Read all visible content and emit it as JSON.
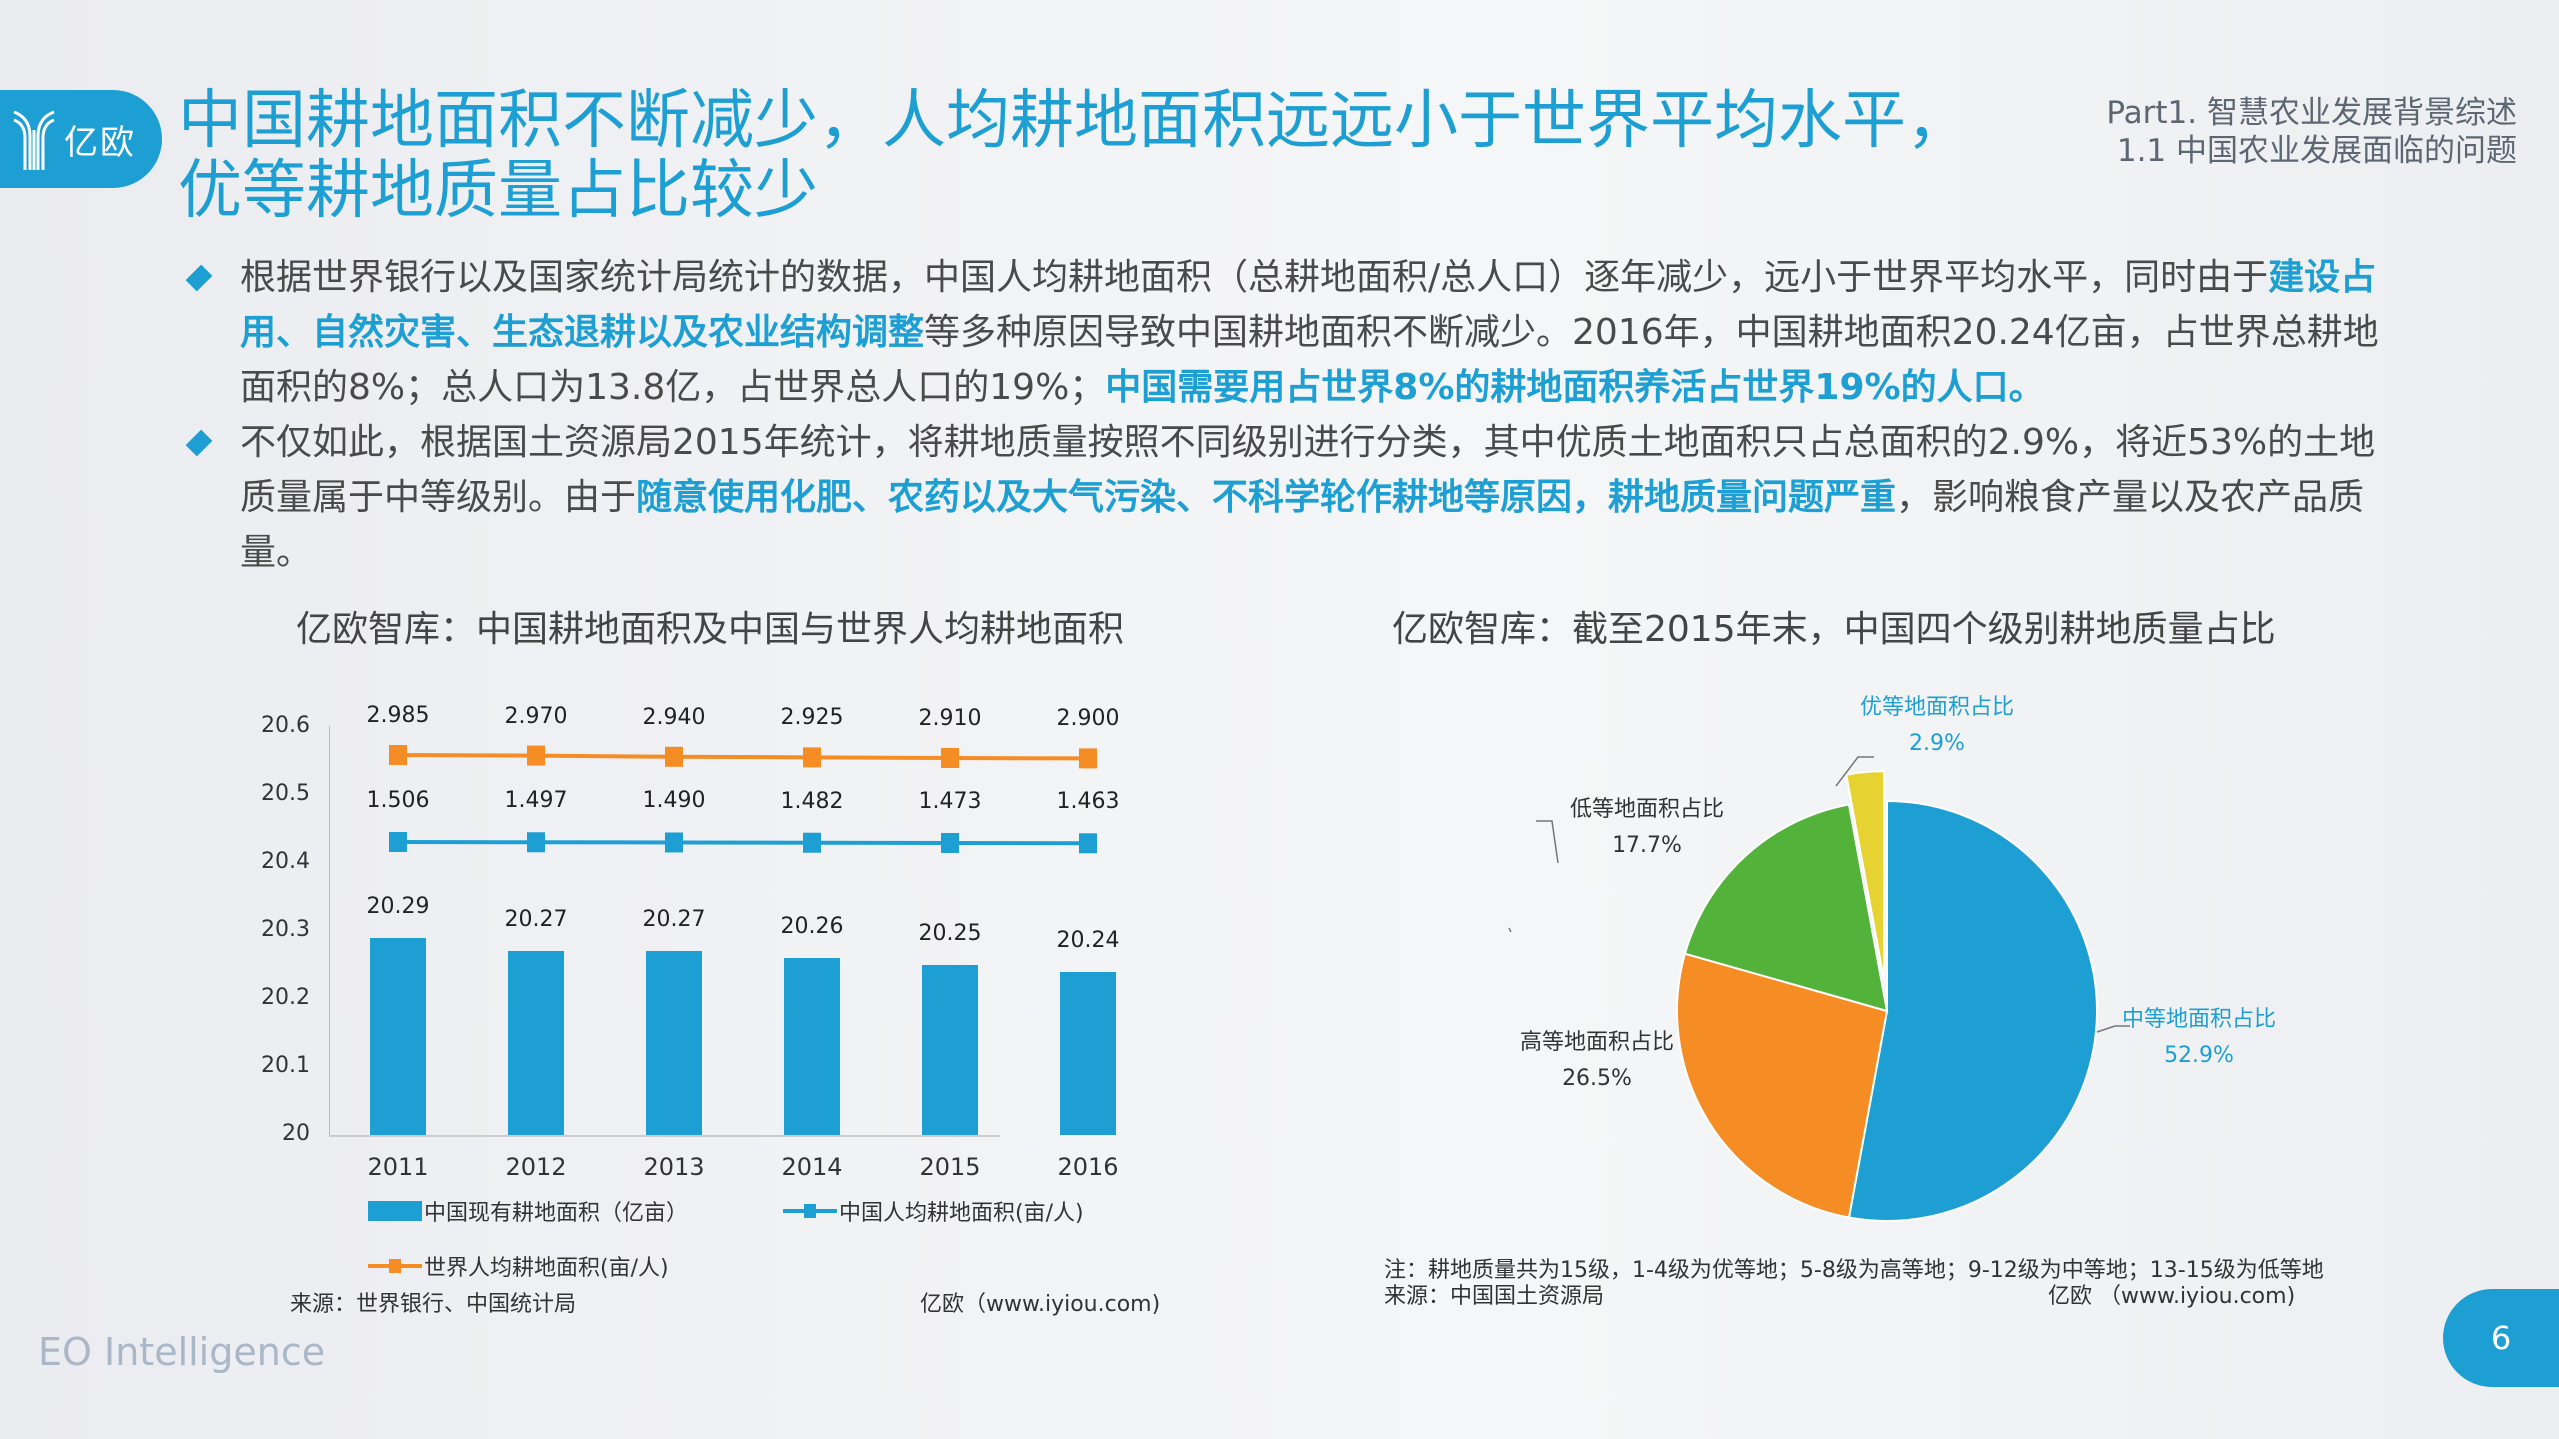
{
  "brand": {
    "logo_text": "亿欧",
    "footer": "EO Intelligence",
    "accent": "#1e9fd3"
  },
  "header": {
    "title_line1": "中国耕地面积不断减少，人均耕地面积远远小于世界平均水平，",
    "title_line2": "优等耕地质量占比较少",
    "part": "Part1. 智慧农业发展背景综述",
    "section": "1.1 中国农业发展面临的问题"
  },
  "bullets": [
    {
      "segments": [
        {
          "text": "根据世界银行以及国家统计局统计的数据，中国人均耕地面积（总耕地面积/总人口）逐年减少，远小于世界平均水平，同时由于",
          "hl": false
        },
        {
          "text": "建设占用、自然灾害、生态退耕以及农业结构调整",
          "hl": true
        },
        {
          "text": "等多种原因导致中国耕地面积不断减少。2016年，中国耕地面积20.24亿亩，占世界总耕地面积的8%；总人口为13.8亿，占世界总人口的19%；",
          "hl": false
        },
        {
          "text": "中国需要用占世界8%的耕地面积养活占世界19%的人口。",
          "hl": true
        }
      ]
    },
    {
      "segments": [
        {
          "text": "不仅如此，根据国土资源局2015年统计，将耕地质量按照不同级别进行分类，其中优质土地面积只占总面积的2.9%，将近53%的土地质量属于中等级别。由于",
          "hl": false
        },
        {
          "text": "随意使用化肥、农药以及大气污染、不科学轮作耕地等原因，耕地质量问题严重",
          "hl": true
        },
        {
          "text": "，影响粮食产量以及农产品质量。",
          "hl": false
        }
      ]
    }
  ],
  "chart_data": [
    {
      "type": "bar",
      "title": "亿欧智库：中国耕地面积及中国与世界人均耕地面积",
      "categories": [
        "2011",
        "2012",
        "2013",
        "2014",
        "2015",
        "2016"
      ],
      "yticks": [
        "20.6",
        "20.5",
        "20.4",
        "20.3",
        "20.2",
        "20.1",
        "20"
      ],
      "ylim": [
        20,
        20.6
      ],
      "series": [
        {
          "name": "中国现有耕地面积（亿亩）",
          "kind": "bar",
          "color": "#1e9fd3",
          "values": [
            20.29,
            20.27,
            20.27,
            20.26,
            20.25,
            20.24
          ],
          "labels": [
            "20.29",
            "20.27",
            "20.27",
            "20.26",
            "20.25",
            "20.24"
          ]
        },
        {
          "name": "中国人均耕地面积(亩/人)",
          "kind": "line",
          "color": "#1e9fd3",
          "values": [
            1.506,
            1.497,
            1.49,
            1.482,
            1.473,
            1.463
          ],
          "labels": [
            "1.506",
            "1.497",
            "1.490",
            "1.482",
            "1.473",
            "1.463"
          ]
        },
        {
          "name": "世界人均耕地面积(亩/人)",
          "kind": "line",
          "color": "#f68c24",
          "values": [
            2.985,
            2.97,
            2.94,
            2.925,
            2.91,
            2.9
          ],
          "labels": [
            "2.985",
            "2.970",
            "2.940",
            "2.925",
            "2.910",
            "2.900"
          ]
        }
      ],
      "source": "来源：世界银行、中国统计局",
      "credit": "亿欧（www.iyiou.com)",
      "grid": false,
      "legend_position": "bottom"
    },
    {
      "type": "pie",
      "title": "亿欧智库：截至2015年末，中国四个级别耕地质量占比",
      "slices": [
        {
          "name": "中等地面积占比",
          "value": 52.9,
          "label": "52.9%",
          "color": "#1e9fd3"
        },
        {
          "name": "高等地面积占比",
          "value": 26.5,
          "label": "26.5%",
          "color": "#f68c24"
        },
        {
          "name": "低等地面积占比",
          "value": 17.7,
          "label": "17.7%",
          "color": "#52b23a"
        },
        {
          "name": "优等地面积占比",
          "value": 2.9,
          "label": "2.9%",
          "color": "#e6d331"
        }
      ],
      "note": "注：耕地质量共为15级，1-4级为优等地；5-8级为高等地；9-12级为中等地；13-15级为低等地",
      "source": "来源：中国国土资源局",
      "credit": "亿欧 （www.iyiou.com)"
    }
  ],
  "page_number": "6"
}
